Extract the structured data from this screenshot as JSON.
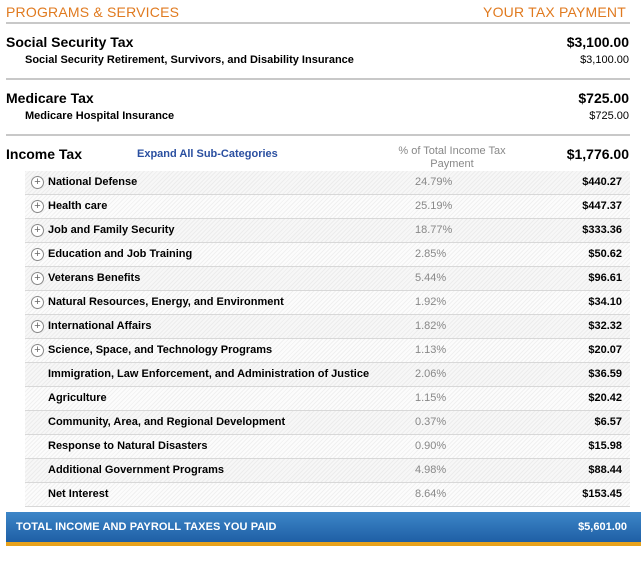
{
  "header": {
    "left": "PROGRAMS & SERVICES",
    "right": "YOUR TAX PAYMENT"
  },
  "social_security": {
    "title": "Social Security Tax",
    "total": "$3,100.00",
    "sub_label": "Social Security Retirement, Survivors, and Disability Insurance",
    "sub_value": "$3,100.00"
  },
  "medicare": {
    "title": "Medicare Tax",
    "total": "$725.00",
    "sub_label": "Medicare Hospital Insurance",
    "sub_value": "$725.00"
  },
  "income_tax": {
    "title": "Income Tax",
    "expand_label": "Expand All Sub-Categories",
    "pct_header": "% of Total Income Tax Payment",
    "total": "$1,776.00",
    "rows": [
      {
        "label": "National Defense",
        "pct": "24.79%",
        "value": "$440.27",
        "expandable": true
      },
      {
        "label": "Health care",
        "pct": "25.19%",
        "value": "$447.37",
        "expandable": true
      },
      {
        "label": "Job and Family Security",
        "pct": "18.77%",
        "value": "$333.36",
        "expandable": true
      },
      {
        "label": "Education and Job Training",
        "pct": "2.85%",
        "value": "$50.62",
        "expandable": true
      },
      {
        "label": "Veterans Benefits",
        "pct": "5.44%",
        "value": "$96.61",
        "expandable": true
      },
      {
        "label": "Natural Resources, Energy, and Environment",
        "pct": "1.92%",
        "value": "$34.10",
        "expandable": true
      },
      {
        "label": "International Affairs",
        "pct": "1.82%",
        "value": "$32.32",
        "expandable": true
      },
      {
        "label": "Science, Space, and Technology Programs",
        "pct": "1.13%",
        "value": "$20.07",
        "expandable": true
      },
      {
        "label": "Immigration, Law Enforcement, and Administration of Justice",
        "pct": "2.06%",
        "value": "$36.59",
        "expandable": false
      },
      {
        "label": "Agriculture",
        "pct": "1.15%",
        "value": "$20.42",
        "expandable": false
      },
      {
        "label": "Community, Area, and Regional Development",
        "pct": "0.37%",
        "value": "$6.57",
        "expandable": false
      },
      {
        "label": "Response to Natural Disasters",
        "pct": "0.90%",
        "value": "$15.98",
        "expandable": false
      },
      {
        "label": "Additional Government Programs",
        "pct": "4.98%",
        "value": "$88.44",
        "expandable": false
      },
      {
        "label": "Net Interest",
        "pct": "8.64%",
        "value": "$153.45",
        "expandable": false
      }
    ]
  },
  "total": {
    "label": "TOTAL INCOME AND PAYROLL TAXES YOU PAID",
    "value": "$5,601.00"
  },
  "colors": {
    "header_orange": "#e07a1f",
    "link_blue": "#2a4fa0",
    "total_bar_blue": "#2a6db3",
    "total_bar_accent": "#e7a21c"
  }
}
